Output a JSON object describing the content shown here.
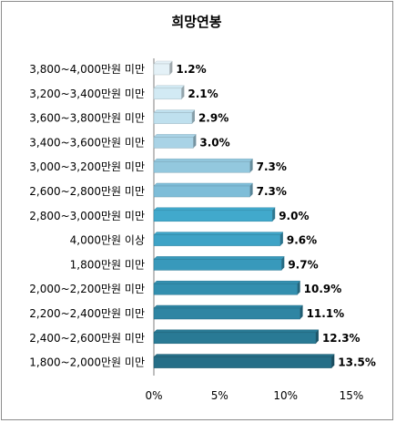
{
  "chart_data": {
    "type": "bar",
    "orientation": "horizontal",
    "title": "희망연봉",
    "categories": [
      "3,800~4,000만원  미만",
      "3,200~3,400만원  미만",
      "3,600~3,800만원  미만",
      "3,400~3,600만원  미만",
      "3,000~3,200만원  미만",
      "2,600~2,800만원  미만",
      "2,800~3,000만원  미만",
      "4,000만원 이상",
      "1,800만원  미만",
      "2,000~2,200만원  미만",
      "2,200~2,400만원  미만",
      "2,400~2,600만원  미만",
      "1,800~2,000만원  미만"
    ],
    "values": [
      1.2,
      2.1,
      2.9,
      3.0,
      7.3,
      7.3,
      9.0,
      9.6,
      9.7,
      10.9,
      11.1,
      12.3,
      13.5
    ],
    "data_labels": [
      "1.2%",
      "2.1%",
      "2.9%",
      "3.0%",
      "7.3%",
      "7.3%",
      "9.0%",
      "9.6%",
      "9.7%",
      "10.9%",
      "11.1%",
      "12.3%",
      "13.5%"
    ],
    "xlim": [
      0,
      15
    ],
    "x_ticks": [
      0,
      5,
      10,
      15
    ],
    "x_tick_labels": [
      "0%",
      "5%",
      "10%",
      "15%"
    ],
    "grid": false,
    "legend": "none",
    "bar_colors": [
      "#e4f1f7",
      "#d2eaf4",
      "#bfe0ee",
      "#a9d3e6",
      "#93c8de",
      "#7ebdd8",
      "#41a9cc",
      "#3ea3c6",
      "#3899bb",
      "#338faf",
      "#2e85a3",
      "#297a95",
      "#256e87"
    ]
  }
}
